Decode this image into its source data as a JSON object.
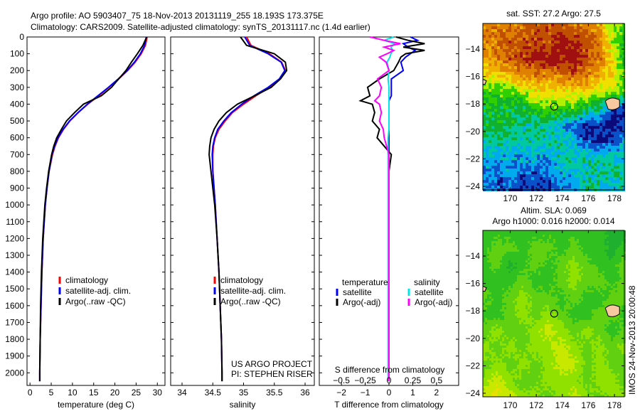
{
  "title_line1": "Argo profile: AO 5903407_75 18-Nov-2013 20131119_255 18.193S 173.375E",
  "title_line2": "Climatology: CARS2009. Satellite-adjusted climatology: synTS_20131117.nc (1.4d earlier)",
  "credit": "IMOS 24-Nov-2013 20:00:48",
  "colors": {
    "climatology": "#ff0000",
    "satellite": "#0000ff",
    "argo": "#000000",
    "s_satellite": "#00e5e5",
    "s_argo": "#ff00ff"
  },
  "chart_data": [
    {
      "type": "line",
      "name": "temperature",
      "xlabel": "temperature (deg C)",
      "xlim": [
        -0.7,
        31.8
      ],
      "xticks": [
        0,
        5,
        10,
        15,
        20,
        25,
        30
      ],
      "ylim": [
        0,
        2075
      ],
      "yticks": [
        0,
        100,
        200,
        300,
        400,
        500,
        600,
        700,
        800,
        900,
        1000,
        1100,
        1200,
        1300,
        1400,
        1500,
        1600,
        1700,
        1800,
        1900,
        2000
      ],
      "depth": [
        0,
        50,
        100,
        150,
        200,
        250,
        300,
        350,
        400,
        450,
        500,
        550,
        600,
        650,
        700,
        800,
        900,
        1000,
        1200,
        1400,
        1600,
        1800,
        2000,
        2050
      ],
      "series": [
        {
          "name": "climatology",
          "color_key": "climatology",
          "values": [
            27.6,
            27.2,
            26.2,
            24.8,
            23.0,
            20.9,
            18.6,
            16.2,
            13.6,
            11.4,
            9.4,
            7.9,
            6.7,
            5.9,
            5.3,
            4.5,
            4.0,
            3.6,
            3.1,
            2.8,
            2.6,
            2.4,
            2.3,
            2.3
          ]
        },
        {
          "name": "satellite-adj. clim.",
          "color_key": "satellite",
          "values": [
            27.4,
            27.0,
            26.0,
            24.6,
            22.9,
            20.8,
            18.5,
            16.0,
            13.5,
            11.3,
            9.3,
            7.8,
            6.6,
            5.8,
            5.2,
            4.5,
            4.0,
            3.6,
            3.1,
            2.8,
            2.6,
            2.4,
            2.3,
            2.3
          ]
        },
        {
          "name": "Argo(..raw -QC)",
          "color_key": "argo",
          "values": [
            27.5,
            26.6,
            25.3,
            23.9,
            22.6,
            20.9,
            19.2,
            16.8,
            12.6,
            10.5,
            8.6,
            7.4,
            6.3,
            5.6,
            5.1,
            4.4,
            3.9,
            3.5,
            3.0,
            2.7,
            2.5,
            2.4,
            2.3,
            2.3
          ]
        }
      ],
      "legend": [
        "climatology",
        "satellite-adj. clim.",
        "Argo(..raw -QC)"
      ]
    },
    {
      "type": "line",
      "name": "salinity",
      "xlabel": "salinity",
      "xlim": [
        33.815,
        36.15
      ],
      "xticks": [
        34,
        34.5,
        35,
        35.5,
        36
      ],
      "depth": [
        0,
        50,
        100,
        150,
        200,
        250,
        300,
        350,
        400,
        450,
        500,
        550,
        600,
        650,
        700,
        800,
        900,
        1000,
        1200,
        1400,
        1600,
        1800,
        2000,
        2050
      ],
      "series": [
        {
          "name": "climatology",
          "color_key": "climatology",
          "values": [
            35.05,
            35.12,
            35.42,
            35.62,
            35.68,
            35.6,
            35.42,
            35.2,
            35.0,
            34.82,
            34.7,
            34.6,
            34.54,
            34.51,
            34.5,
            34.5,
            34.52,
            34.54,
            34.57,
            34.6,
            34.62,
            34.64,
            34.65,
            34.65
          ]
        },
        {
          "name": "satellite-adj. clim.",
          "color_key": "satellite",
          "values": [
            35.02,
            35.1,
            35.4,
            35.61,
            35.67,
            35.58,
            35.4,
            35.17,
            34.97,
            34.8,
            34.68,
            34.58,
            34.53,
            34.5,
            34.49,
            34.5,
            34.52,
            34.54,
            34.57,
            34.6,
            34.62,
            34.64,
            34.65,
            34.65
          ]
        },
        {
          "name": "Argo(..raw -QC)",
          "color_key": "argo",
          "values": [
            34.95,
            35.05,
            35.5,
            35.68,
            35.7,
            35.6,
            35.45,
            35.18,
            34.9,
            34.72,
            34.6,
            34.52,
            34.47,
            34.45,
            34.44,
            34.47,
            34.5,
            34.53,
            34.57,
            34.6,
            34.62,
            34.64,
            34.65,
            34.65
          ]
        }
      ],
      "legend": [
        "climatology",
        "satellite-adj. clim.",
        "Argo(..raw -QC)"
      ],
      "annotation": [
        "US ARGO PROJECT",
        "PI: STEPHEN RISER"
      ]
    },
    {
      "type": "line",
      "name": "difference",
      "xlabel": "T difference from climatology",
      "xlim": [
        -2.93,
        2.93
      ],
      "xticks": [
        -2,
        -1,
        0,
        1,
        2
      ],
      "top_label": "S difference from climatology",
      "sticks": [
        -0.5,
        -0.25,
        0,
        0.25,
        0.5
      ],
      "s_tick_labels": [
        "-0.5",
        "-0.25",
        "0",
        "0.25",
        "0.5"
      ],
      "depth": [
        0,
        20,
        40,
        60,
        80,
        100,
        120,
        150,
        200,
        250,
        300,
        350,
        380,
        400,
        450,
        500,
        550,
        600,
        700,
        800,
        900,
        1000,
        1200,
        1500,
        2000,
        2050
      ],
      "series": [
        {
          "name": "T satellite",
          "axis": "T",
          "color_key": "satellite",
          "values": [
            0.9,
            1.2,
            0.6,
            0.8,
            1.1,
            0.9,
            0.7,
            0.5,
            0.6,
            0.1,
            0.1,
            0.1,
            0.0,
            0.0,
            0.0,
            0.0,
            0.0,
            0.0,
            0.0,
            0.0,
            0.0,
            0.0,
            0.0,
            0.0,
            0.0,
            0.0
          ]
        },
        {
          "name": "T Argo(-adj)",
          "axis": "T",
          "color_key": "argo",
          "values": [
            0.3,
            0.8,
            1.5,
            0.6,
            1.5,
            0.7,
            0.5,
            0.4,
            0.2,
            -0.4,
            -0.9,
            -0.8,
            -1.2,
            -0.7,
            -0.6,
            -0.7,
            -0.4,
            -0.5,
            0.1,
            0.0,
            0.0,
            0.0,
            0.0,
            0.0,
            0.0,
            0.0
          ]
        },
        {
          "name": "S satellite",
          "axis": "S",
          "color_key": "s_satellite",
          "values": [
            0.05,
            -0.05,
            0.06,
            0.02,
            0.04,
            0.02,
            0.01,
            -0.02,
            0.0,
            -0.01,
            0.0,
            0.0,
            0.0,
            0.0,
            0.0,
            0.0,
            0.0,
            -0.01,
            -0.01,
            -0.01,
            -0.01,
            -0.01,
            -0.01,
            -0.01,
            -0.01,
            -0.01
          ]
        },
        {
          "name": "S Argo(-adj)",
          "axis": "S",
          "color_key": "s_argo",
          "values": [
            -0.2,
            -0.05,
            0.12,
            -0.05,
            0.05,
            -0.02,
            -0.1,
            -0.03,
            0.0,
            -0.12,
            -0.08,
            -0.1,
            -0.15,
            -0.1,
            -0.08,
            -0.1,
            -0.06,
            -0.05,
            0.0,
            0.0,
            0.0,
            0.0,
            0.0,
            0.0,
            0.0,
            0.0
          ]
        }
      ],
      "legend_headers": [
        "temperature",
        "salinity"
      ],
      "legend": [
        "satellite",
        "Argo(-adj)",
        "satellite",
        "Argo(-adj)"
      ]
    },
    {
      "type": "heatmap",
      "name": "sst-map",
      "title": "sat. SST: 27.2 Argo: 27.5",
      "lon_range": [
        167.9,
        178.76
      ],
      "lat_range": [
        -12.13,
        -24.26
      ],
      "xticks": [
        170,
        172,
        174,
        176,
        178
      ],
      "yticks": [
        -14,
        -16,
        -18,
        -20,
        -22,
        -24
      ],
      "argo_position": {
        "lon": 173.375,
        "lat": -18.193
      },
      "colormap": [
        "#0a0a7a",
        "#0a50c8",
        "#00aaee",
        "#00c8a0",
        "#10b030",
        "#30d000",
        "#b0f000",
        "#f0e000",
        "#f0b000",
        "#e08000",
        "#c05000",
        "#a01010"
      ],
      "coarse_grid": [
        [
          9,
          9,
          9,
          9,
          10,
          10,
          10,
          9,
          9,
          8,
          6,
          5
        ],
        [
          9,
          9,
          10,
          10,
          10,
          10,
          11,
          11,
          10,
          9,
          6,
          4
        ],
        [
          8,
          9,
          10,
          10,
          11,
          11,
          11,
          11,
          10,
          9,
          7,
          4
        ],
        [
          7,
          7,
          8,
          9,
          9,
          9,
          9,
          10,
          9,
          8,
          7,
          5
        ],
        [
          5,
          5,
          5,
          6,
          7,
          7,
          7,
          7,
          7,
          6,
          6,
          5
        ],
        [
          4,
          4,
          4,
          4,
          5,
          5,
          5,
          5,
          4,
          3,
          1,
          0
        ],
        [
          4,
          4,
          4,
          3,
          3,
          3,
          2,
          1,
          0,
          1,
          0,
          1
        ],
        [
          3,
          3,
          3,
          3,
          3,
          3,
          3,
          2,
          1,
          0,
          1,
          2
        ],
        [
          2,
          2,
          2,
          2,
          2,
          2,
          3,
          3,
          3,
          3,
          3,
          3
        ],
        [
          2,
          1,
          2,
          1,
          1,
          1,
          2,
          2,
          3,
          3,
          3,
          3
        ],
        [
          1,
          1,
          1,
          0,
          0,
          1,
          1,
          2,
          3,
          3,
          2,
          3
        ]
      ]
    },
    {
      "type": "heatmap",
      "name": "sla-map",
      "title": "Altim. SLA: 0.069",
      "subtitle": "Argo h1000: 0.016 h2000: 0.014",
      "lon_range": [
        167.9,
        178.76
      ],
      "lat_range": [
        -12.13,
        -24.26
      ],
      "xticks": [
        170,
        172,
        174,
        176,
        178
      ],
      "yticks": [
        -14,
        -16,
        -18,
        -20,
        -22,
        -24
      ],
      "argo_position": {
        "lon": 173.375,
        "lat": -18.193
      },
      "colormap": [
        "#10a040",
        "#20b030",
        "#30c020",
        "#60d010",
        "#90e000",
        "#c8e800",
        "#e8e000"
      ],
      "coarse_grid": [
        [
          2,
          2,
          2,
          2,
          2,
          2,
          2,
          2,
          2,
          2,
          1,
          1
        ],
        [
          2,
          3,
          3,
          2,
          3,
          3,
          2,
          3,
          2,
          2,
          1,
          2
        ],
        [
          2,
          3,
          1,
          2,
          3,
          2,
          3,
          4,
          3,
          2,
          2,
          3
        ],
        [
          2,
          2,
          2,
          3,
          2,
          2,
          3,
          4,
          3,
          3,
          2,
          3
        ],
        [
          3,
          2,
          3,
          4,
          3,
          3,
          2,
          3,
          2,
          2,
          3,
          3
        ],
        [
          2,
          2,
          3,
          4,
          3,
          4,
          3,
          2,
          2,
          3,
          3,
          2
        ],
        [
          3,
          4,
          3,
          3,
          4,
          5,
          4,
          3,
          4,
          3,
          2,
          3
        ],
        [
          4,
          3,
          4,
          3,
          4,
          4,
          5,
          4,
          3,
          4,
          3,
          4
        ],
        [
          3,
          4,
          3,
          4,
          3,
          4,
          5,
          5,
          3,
          4,
          3,
          3
        ],
        [
          4,
          5,
          4,
          3,
          3,
          4,
          4,
          4,
          3,
          4,
          4,
          3
        ],
        [
          5,
          6,
          5,
          4,
          4,
          3,
          4,
          5,
          4,
          3,
          4,
          4
        ]
      ]
    }
  ]
}
